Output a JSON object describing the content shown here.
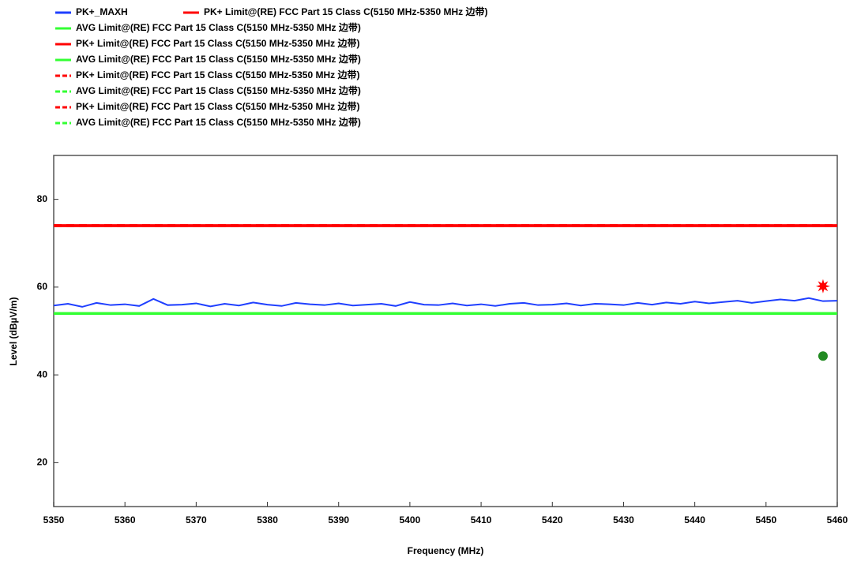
{
  "chart_data": {
    "type": "line",
    "x_label": "Frequency (MHz)",
    "y_label": "Level (dBµV/m)",
    "xlim": [
      5350,
      5460
    ],
    "xticks": [
      5350,
      5360,
      5370,
      5380,
      5390,
      5400,
      5410,
      5420,
      5430,
      5440,
      5450,
      5460
    ],
    "ylim": [
      10,
      90
    ],
    "yticks": [
      20,
      40,
      60,
      80
    ],
    "series": [
      {
        "name": "PK+_MAXH",
        "color": "#1f3fff",
        "dash": false,
        "x": [
          5350,
          5352,
          5354,
          5356,
          5358,
          5360,
          5362,
          5364,
          5366,
          5368,
          5370,
          5372,
          5374,
          5376,
          5378,
          5380,
          5382,
          5384,
          5386,
          5388,
          5390,
          5392,
          5394,
          5396,
          5398,
          5400,
          5402,
          5404,
          5406,
          5408,
          5410,
          5412,
          5414,
          5416,
          5418,
          5420,
          5422,
          5424,
          5426,
          5428,
          5430,
          5432,
          5434,
          5436,
          5438,
          5440,
          5442,
          5444,
          5446,
          5448,
          5450,
          5452,
          5454,
          5456,
          5458,
          5460
        ],
        "values": [
          55.8,
          56.2,
          55.5,
          56.4,
          55.9,
          56.1,
          55.7,
          57.3,
          55.9,
          56.0,
          56.3,
          55.6,
          56.2,
          55.8,
          56.5,
          56.0,
          55.7,
          56.4,
          56.1,
          55.9,
          56.3,
          55.8,
          56.0,
          56.2,
          55.7,
          56.6,
          56.0,
          55.9,
          56.3,
          55.8,
          56.1,
          55.7,
          56.2,
          56.4,
          55.9,
          56.0,
          56.3,
          55.8,
          56.2,
          56.1,
          55.9,
          56.4,
          56.0,
          56.5,
          56.2,
          56.7,
          56.3,
          56.6,
          56.9,
          56.4,
          56.8,
          57.2,
          56.9,
          57.5,
          56.8,
          56.9
        ]
      },
      {
        "name": "PK+ Limit@(RE) FCC Part 15 Class C(5150 MHz-5350 MHz 边带)",
        "color": "#ff0000",
        "dash": false,
        "x": [
          5350,
          5460
        ],
        "values": [
          74,
          74
        ]
      },
      {
        "name": "AVG Limit@(RE) FCC Part 15 Class C(5150 MHz-5350 MHz 边带)",
        "color": "#33ff33",
        "dash": false,
        "x": [
          5350,
          5460
        ],
        "values": [
          54,
          54
        ]
      },
      {
        "name": "PK+ Limit@(RE) FCC Part 15 Class C(5150 MHz-5350 MHz 边带)",
        "color": "#ff0000",
        "dash": false,
        "x": [
          5350,
          5460
        ],
        "values": [
          74,
          74
        ]
      },
      {
        "name": "AVG Limit@(RE) FCC Part 15 Class C(5150 MHz-5350 MHz 边带)",
        "color": "#33ff33",
        "dash": false,
        "x": [
          5350,
          5460
        ],
        "values": [
          54,
          54
        ]
      },
      {
        "name": "PK+ Limit@(RE) FCC Part 15 Class C(5150 MHz-5350 MHz 边带)",
        "color": "#ff0000",
        "dash": true,
        "x": [
          5350,
          5460
        ],
        "values": [
          74,
          74
        ]
      },
      {
        "name": "AVG Limit@(RE) FCC Part 15 Class C(5150 MHz-5350 MHz 边带)",
        "color": "#33ff33",
        "dash": true,
        "x": [
          5350,
          5460
        ],
        "values": [
          54,
          54
        ]
      },
      {
        "name": "PK+ Limit@(RE) FCC Part 15 Class C(5150 MHz-5350 MHz 边带)",
        "color": "#ff0000",
        "dash": true,
        "x": [
          5350,
          5460
        ],
        "values": [
          74,
          74
        ]
      },
      {
        "name": "AVG Limit@(RE) FCC Part 15 Class C(5150 MHz-5350 MHz 边带)",
        "color": "#33ff33",
        "dash": true,
        "x": [
          5350,
          5460
        ],
        "values": [
          54,
          54
        ]
      }
    ],
    "points": [
      {
        "x": 5458,
        "y": 60.2,
        "color": "#ff0000",
        "marker": "star"
      },
      {
        "x": 5458,
        "y": 44.3,
        "color": "#228b22",
        "marker": "circle"
      }
    ]
  }
}
